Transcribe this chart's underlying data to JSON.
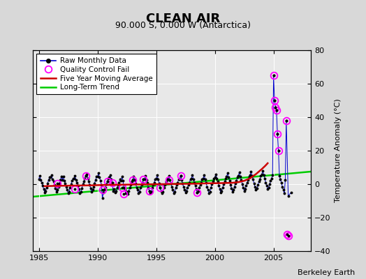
{
  "title": "CLEAN AIR",
  "subtitle": "90.000 S, 0.000 W (Antarctica)",
  "ylabel": "Temperature Anomaly (°C)",
  "credit": "Berkeley Earth",
  "xlim": [
    1984.5,
    2008.2
  ],
  "ylim": [
    -40,
    80
  ],
  "yticks": [
    -40,
    -20,
    0,
    20,
    40,
    60,
    80
  ],
  "xticks": [
    1985,
    1990,
    1995,
    2000,
    2005
  ],
  "bg_color": "#d8d8d8",
  "plot_bg": "#e8e8e8",
  "raw_color": "#0000cc",
  "ma_color": "#cc0000",
  "trend_color": "#00cc00",
  "qc_color": "#ff00ff",
  "raw_monthly_x": [
    1985.0,
    1985.083,
    1985.167,
    1985.25,
    1985.333,
    1985.417,
    1985.5,
    1985.583,
    1985.667,
    1985.75,
    1985.833,
    1985.917,
    1986.0,
    1986.083,
    1986.167,
    1986.25,
    1986.333,
    1986.417,
    1986.5,
    1986.583,
    1986.667,
    1986.75,
    1986.833,
    1986.917,
    1987.0,
    1987.083,
    1987.167,
    1987.25,
    1987.333,
    1987.417,
    1987.5,
    1987.583,
    1987.667,
    1987.75,
    1987.833,
    1987.917,
    1988.0,
    1988.083,
    1988.167,
    1988.25,
    1988.333,
    1988.417,
    1988.5,
    1988.583,
    1988.667,
    1988.75,
    1988.833,
    1988.917,
    1989.0,
    1989.083,
    1989.167,
    1989.25,
    1989.333,
    1989.417,
    1989.5,
    1989.583,
    1989.667,
    1989.75,
    1989.833,
    1989.917,
    1990.0,
    1990.083,
    1990.167,
    1990.25,
    1990.333,
    1990.417,
    1990.5,
    1990.583,
    1990.667,
    1990.75,
    1990.833,
    1990.917,
    1991.0,
    1991.083,
    1991.167,
    1991.25,
    1991.333,
    1991.417,
    1991.5,
    1991.583,
    1991.667,
    1991.75,
    1991.833,
    1991.917,
    1992.0,
    1992.083,
    1992.167,
    1992.25,
    1992.333,
    1992.417,
    1992.5,
    1992.583,
    1992.667,
    1992.75,
    1992.833,
    1992.917,
    1993.0,
    1993.083,
    1993.167,
    1993.25,
    1993.333,
    1993.417,
    1993.5,
    1993.583,
    1993.667,
    1993.75,
    1993.833,
    1993.917,
    1994.0,
    1994.083,
    1994.167,
    1994.25,
    1994.333,
    1994.417,
    1994.5,
    1994.583,
    1994.667,
    1994.75,
    1994.833,
    1994.917,
    1995.0,
    1995.083,
    1995.167,
    1995.25,
    1995.333,
    1995.417,
    1995.5,
    1995.583,
    1995.667,
    1995.75,
    1995.833,
    1995.917,
    1996.0,
    1996.083,
    1996.167,
    1996.25,
    1996.333,
    1996.417,
    1996.5,
    1996.583,
    1996.667,
    1996.75,
    1996.833,
    1996.917,
    1997.0,
    1997.083,
    1997.167,
    1997.25,
    1997.333,
    1997.417,
    1997.5,
    1997.583,
    1997.667,
    1997.75,
    1997.833,
    1997.917,
    1998.0,
    1998.083,
    1998.167,
    1998.25,
    1998.333,
    1998.417,
    1998.5,
    1998.583,
    1998.667,
    1998.75,
    1998.833,
    1998.917,
    1999.0,
    1999.083,
    1999.167,
    1999.25,
    1999.333,
    1999.417,
    1999.5,
    1999.583,
    1999.667,
    1999.75,
    1999.833,
    1999.917,
    2000.0,
    2000.083,
    2000.167,
    2000.25,
    2000.333,
    2000.417,
    2000.5,
    2000.583,
    2000.667,
    2000.75,
    2000.833,
    2000.917,
    2001.0,
    2001.083,
    2001.167,
    2001.25,
    2001.333,
    2001.417,
    2001.5,
    2001.583,
    2001.667,
    2001.75,
    2001.833,
    2001.917,
    2002.0,
    2002.083,
    2002.167,
    2002.25,
    2002.333,
    2002.417,
    2002.5,
    2002.583,
    2002.667,
    2002.75,
    2002.833,
    2002.917,
    2003.0,
    2003.083,
    2003.167,
    2003.25,
    2003.333,
    2003.417,
    2003.5,
    2003.583,
    2003.667,
    2003.75,
    2003.833,
    2003.917,
    2004.0,
    2004.083,
    2004.167,
    2004.25,
    2004.333,
    2004.417,
    2004.5,
    2004.583,
    2004.667,
    2004.75,
    2004.833,
    2004.917,
    2005.0,
    2005.083,
    2005.167,
    2005.25,
    2005.333,
    2005.417,
    2005.5,
    2005.583,
    2005.667,
    2005.75,
    2005.833,
    2005.917,
    2006.0,
    2006.083,
    2006.25,
    2006.5
  ],
  "raw_monthly_y": [
    3.0,
    5.0,
    2.5,
    1.0,
    -1.0,
    -3.0,
    -5.0,
    -4.0,
    -2.0,
    0.5,
    2.5,
    4.0,
    4.0,
    5.5,
    3.0,
    1.5,
    -0.5,
    -2.5,
    -4.5,
    -3.5,
    -1.5,
    0.5,
    2.5,
    4.5,
    2.5,
    4.5,
    2.0,
    0.5,
    -1.5,
    -3.5,
    -5.5,
    -4.5,
    -2.0,
    0.0,
    2.0,
    3.5,
    3.5,
    5.0,
    2.5,
    1.0,
    -1.0,
    -3.0,
    -5.5,
    -4.5,
    -2.5,
    0.0,
    1.5,
    3.5,
    5.0,
    6.0,
    3.5,
    1.5,
    -0.5,
    -2.5,
    -4.5,
    -3.5,
    -1.5,
    0.5,
    2.5,
    4.5,
    4.5,
    6.5,
    4.0,
    2.0,
    -0.5,
    -8.5,
    -5.0,
    -3.5,
    -2.0,
    0.0,
    1.5,
    3.5,
    4.0,
    5.5,
    3.0,
    1.0,
    -4.0,
    -3.0,
    -5.0,
    -4.0,
    -2.0,
    -0.5,
    1.0,
    3.0,
    2.0,
    4.5,
    2.0,
    -2.0,
    -3.5,
    -5.5,
    -4.5,
    -6.0,
    -4.0,
    -2.0,
    -0.5,
    1.5,
    2.5,
    4.5,
    2.5,
    0.5,
    -2.0,
    -3.5,
    -5.5,
    -4.5,
    -2.0,
    -0.5,
    1.0,
    3.0,
    3.0,
    5.0,
    2.5,
    1.0,
    -2.0,
    -4.0,
    -5.5,
    -4.5,
    -2.0,
    -0.5,
    1.0,
    3.0,
    3.5,
    5.5,
    3.0,
    0.5,
    -2.0,
    -4.0,
    -5.5,
    -4.5,
    -2.0,
    -0.5,
    1.5,
    3.5,
    3.0,
    5.0,
    2.5,
    0.5,
    -1.5,
    -3.5,
    -5.5,
    -4.5,
    -2.0,
    -0.5,
    1.0,
    3.0,
    3.0,
    5.0,
    2.5,
    0.5,
    -1.5,
    -3.5,
    -5.0,
    -4.0,
    -2.0,
    -0.5,
    1.0,
    3.0,
    3.5,
    5.5,
    3.0,
    1.0,
    -1.0,
    -3.0,
    -5.0,
    -4.0,
    -2.0,
    -0.5,
    1.0,
    3.0,
    3.5,
    5.5,
    3.0,
    1.0,
    -1.5,
    -3.5,
    -5.5,
    -4.5,
    -2.0,
    0.0,
    1.5,
    3.5,
    4.0,
    6.0,
    3.5,
    1.5,
    -1.0,
    -3.0,
    -5.0,
    -4.0,
    -2.0,
    0.0,
    1.5,
    3.5,
    4.5,
    6.5,
    4.0,
    2.0,
    -0.5,
    -2.5,
    -4.5,
    -3.5,
    -1.5,
    0.5,
    2.0,
    4.0,
    5.0,
    7.0,
    4.5,
    2.5,
    0.0,
    -2.0,
    -4.0,
    -3.0,
    -1.0,
    1.0,
    2.5,
    4.5,
    5.5,
    7.5,
    5.0,
    3.0,
    0.5,
    -1.5,
    -3.5,
    -2.5,
    -0.5,
    1.5,
    3.0,
    5.0,
    6.0,
    8.0,
    5.5,
    3.5,
    1.0,
    -1.0,
    -3.0,
    -2.0,
    0.0,
    2.0,
    3.5,
    5.5,
    65.0,
    50.0,
    46.0,
    44.0,
    30.0,
    20.0,
    5.0,
    3.0,
    1.0,
    -1.5,
    -3.5,
    -5.5,
    2.5,
    38.0,
    -7.0,
    -5.0
  ],
  "qc_fail_x": [
    1986.583,
    1988.083,
    1989.0,
    1990.417,
    1990.833,
    1991.25,
    1992.083,
    1992.25,
    1993.0,
    1993.917,
    1994.417,
    1995.333,
    1996.083,
    1997.083,
    1998.5,
    2005.0,
    2005.083,
    2005.167,
    2005.25,
    2005.333,
    2005.417,
    2006.083,
    2006.167,
    2006.25
  ],
  "qc_fail_y": [
    0.5,
    -3.0,
    5.0,
    -3.5,
    1.5,
    1.0,
    -2.0,
    -6.0,
    2.5,
    3.0,
    -4.0,
    -2.0,
    2.5,
    5.0,
    -5.0,
    65.0,
    50.0,
    46.0,
    44.0,
    30.0,
    20.0,
    38.0,
    -30.0,
    -31.0
  ],
  "five_year_ma_x": [
    1985.5,
    1986.5,
    1987.5,
    1988.5,
    1989.5,
    1990.5,
    1991.5,
    1992.5,
    1993.5,
    1994.5,
    1995.5,
    1996.5,
    1997.5,
    1998.5,
    1999.5,
    2000.5,
    2001.5,
    2002.0,
    2002.5,
    2003.0,
    2003.5,
    2004.0,
    2004.3,
    2004.5
  ],
  "five_year_ma_y": [
    -1.2,
    -1.0,
    -0.9,
    -0.8,
    -0.7,
    -0.5,
    -0.4,
    -0.3,
    -0.2,
    -0.1,
    0.0,
    0.1,
    0.2,
    0.3,
    0.5,
    0.6,
    0.8,
    1.2,
    2.0,
    3.5,
    6.0,
    9.0,
    11.0,
    12.5
  ],
  "long_term_trend_x": [
    1984.5,
    2008.2
  ],
  "long_term_trend_y": [
    -7.5,
    7.5
  ]
}
